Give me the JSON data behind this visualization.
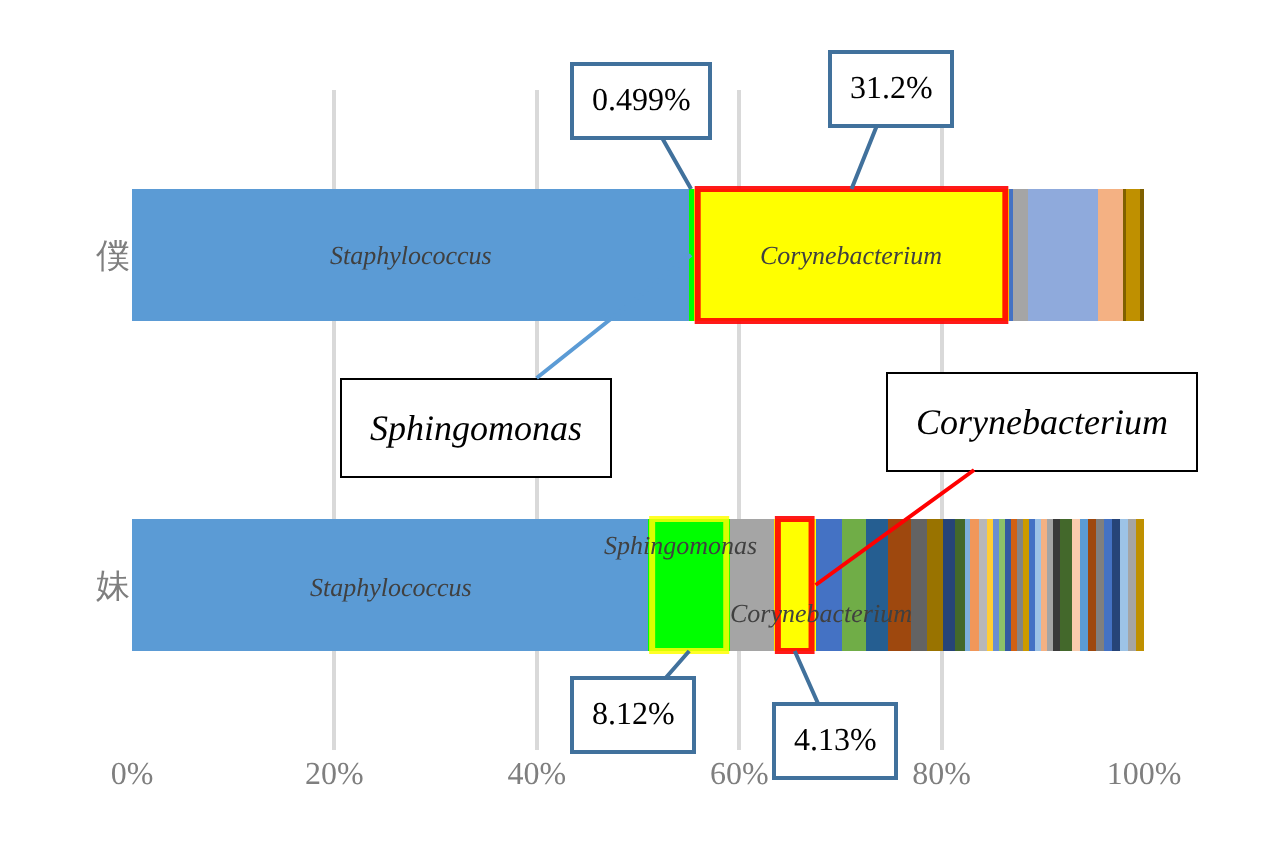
{
  "chart_data": {
    "type": "bar",
    "orientation": "horizontal",
    "stacked": true,
    "categories": [
      "僕",
      "妹"
    ],
    "xlim": [
      0,
      100
    ],
    "xticks": [
      {
        "value": 0,
        "label": "0%"
      },
      {
        "value": 20,
        "label": "20%"
      },
      {
        "value": 40,
        "label": "40%"
      },
      {
        "value": 60,
        "label": "60%"
      },
      {
        "value": 80,
        "label": "80%"
      },
      {
        "value": 100,
        "label": "100%"
      }
    ],
    "grid": "x",
    "series": [
      {
        "values": [
          55.0,
          51.0
        ],
        "colors": [
          "#5b9bd5",
          "#5b9bd5"
        ]
      },
      {
        "values": [
          0.499,
          8.12
        ],
        "colors": [
          "#00ff00",
          "#00ff00"
        ],
        "value_labels": [
          "0.499%",
          "8.12%"
        ]
      },
      {
        "values": [
          31.2,
          4.3
        ],
        "colors": [
          "#ffff00",
          "#a5a5a5"
        ],
        "value_labels": [
          "31.2%",
          null
        ]
      },
      {
        "values": [
          0.4,
          4.13
        ],
        "colors": [
          "#4472c4",
          "#ffff00"
        ],
        "value_labels": [
          null,
          "4.13%"
        ]
      },
      {
        "values": [
          1.4,
          2.6
        ],
        "colors": [
          "#a5a5a5",
          "#4472c4"
        ]
      },
      {
        "values": [
          7.0,
          2.4
        ],
        "colors": [
          "#8faadc",
          "#70ad47"
        ]
      },
      {
        "values": [
          2.4,
          2.2
        ],
        "colors": [
          "#f4b183",
          "#255e91"
        ]
      },
      {
        "values": [
          0.3,
          2.2
        ],
        "colors": [
          "#7f6000",
          "#9e480e"
        ]
      },
      {
        "values": [
          1.4,
          1.6
        ],
        "colors": [
          "#bf9000",
          "#636363"
        ]
      },
      {
        "values": [
          0.4,
          1.6
        ],
        "colors": [
          "#7f6000",
          "#997300"
        ]
      },
      {
        "values": [
          null,
          1.2
        ],
        "colors": [
          null,
          "#264478"
        ]
      },
      {
        "values": [
          null,
          1.0
        ],
        "colors": [
          null,
          "#43682b"
        ]
      },
      {
        "values": [
          null,
          0.5
        ],
        "colors": [
          null,
          "#7cafdd"
        ]
      },
      {
        "values": [
          null,
          0.8
        ],
        "colors": [
          null,
          "#f1975a"
        ]
      },
      {
        "values": [
          null,
          0.8
        ],
        "colors": [
          null,
          "#b7b7b7"
        ]
      },
      {
        "values": [
          null,
          0.6
        ],
        "colors": [
          null,
          "#ffcd33"
        ]
      },
      {
        "values": [
          null,
          0.6
        ],
        "colors": [
          null,
          "#698ed0"
        ]
      },
      {
        "values": [
          null,
          0.6
        ],
        "colors": [
          null,
          "#8cc168"
        ]
      },
      {
        "values": [
          null,
          0.6
        ],
        "colors": [
          null,
          "#335aa1"
        ]
      },
      {
        "values": [
          null,
          0.6
        ],
        "colors": [
          null,
          "#d26012"
        ]
      },
      {
        "values": [
          null,
          0.6
        ],
        "colors": [
          null,
          "#848484"
        ]
      },
      {
        "values": [
          null,
          0.6
        ],
        "colors": [
          null,
          "#cc9a00"
        ]
      },
      {
        "values": [
          null,
          0.6
        ],
        "colors": [
          null,
          "#4472c4"
        ]
      },
      {
        "values": [
          null,
          0.6
        ],
        "colors": [
          null,
          "#9dc3e6"
        ]
      },
      {
        "values": [
          null,
          0.6
        ],
        "colors": [
          null,
          "#f4b183"
        ]
      },
      {
        "values": [
          null,
          0.6
        ],
        "colors": [
          null,
          "#a5a5a5"
        ]
      },
      {
        "values": [
          null,
          0.6
        ],
        "colors": [
          null,
          "#3a3a3a"
        ]
      },
      {
        "values": [
          null,
          1.2
        ],
        "colors": [
          null,
          "#43682b"
        ]
      },
      {
        "values": [
          null,
          0.8
        ],
        "colors": [
          null,
          "#f8cbad"
        ]
      },
      {
        "values": [
          null,
          0.8
        ],
        "colors": [
          null,
          "#5b9bd5"
        ]
      },
      {
        "values": [
          null,
          0.8
        ],
        "colors": [
          null,
          "#9e480e"
        ]
      },
      {
        "values": [
          null,
          0.8
        ],
        "colors": [
          null,
          "#7f7f7f"
        ]
      },
      {
        "values": [
          null,
          0.8
        ],
        "colors": [
          null,
          "#4472c4"
        ]
      },
      {
        "values": [
          null,
          0.8
        ],
        "colors": [
          null,
          "#264478"
        ]
      },
      {
        "values": [
          null,
          0.8
        ],
        "colors": [
          null,
          "#9dc3e6"
        ]
      },
      {
        "values": [
          null,
          0.8
        ],
        "colors": [
          null,
          "#a5a5a5"
        ]
      },
      {
        "values": [
          null,
          0.8
        ],
        "colors": [
          null,
          "#bf9000"
        ]
      }
    ],
    "annotations": [
      "Staphylococcus",
      "Corynebacterium",
      "Staphylococcus",
      "Sphingomonas",
      "Corynebacterium",
      {
        "text": "Sphingomonas",
        "x": 55.25,
        "y": "僕"
      },
      {
        "text": "Corynebacterium",
        "x": 67.55,
        "y": "妹"
      }
    ]
  }
}
